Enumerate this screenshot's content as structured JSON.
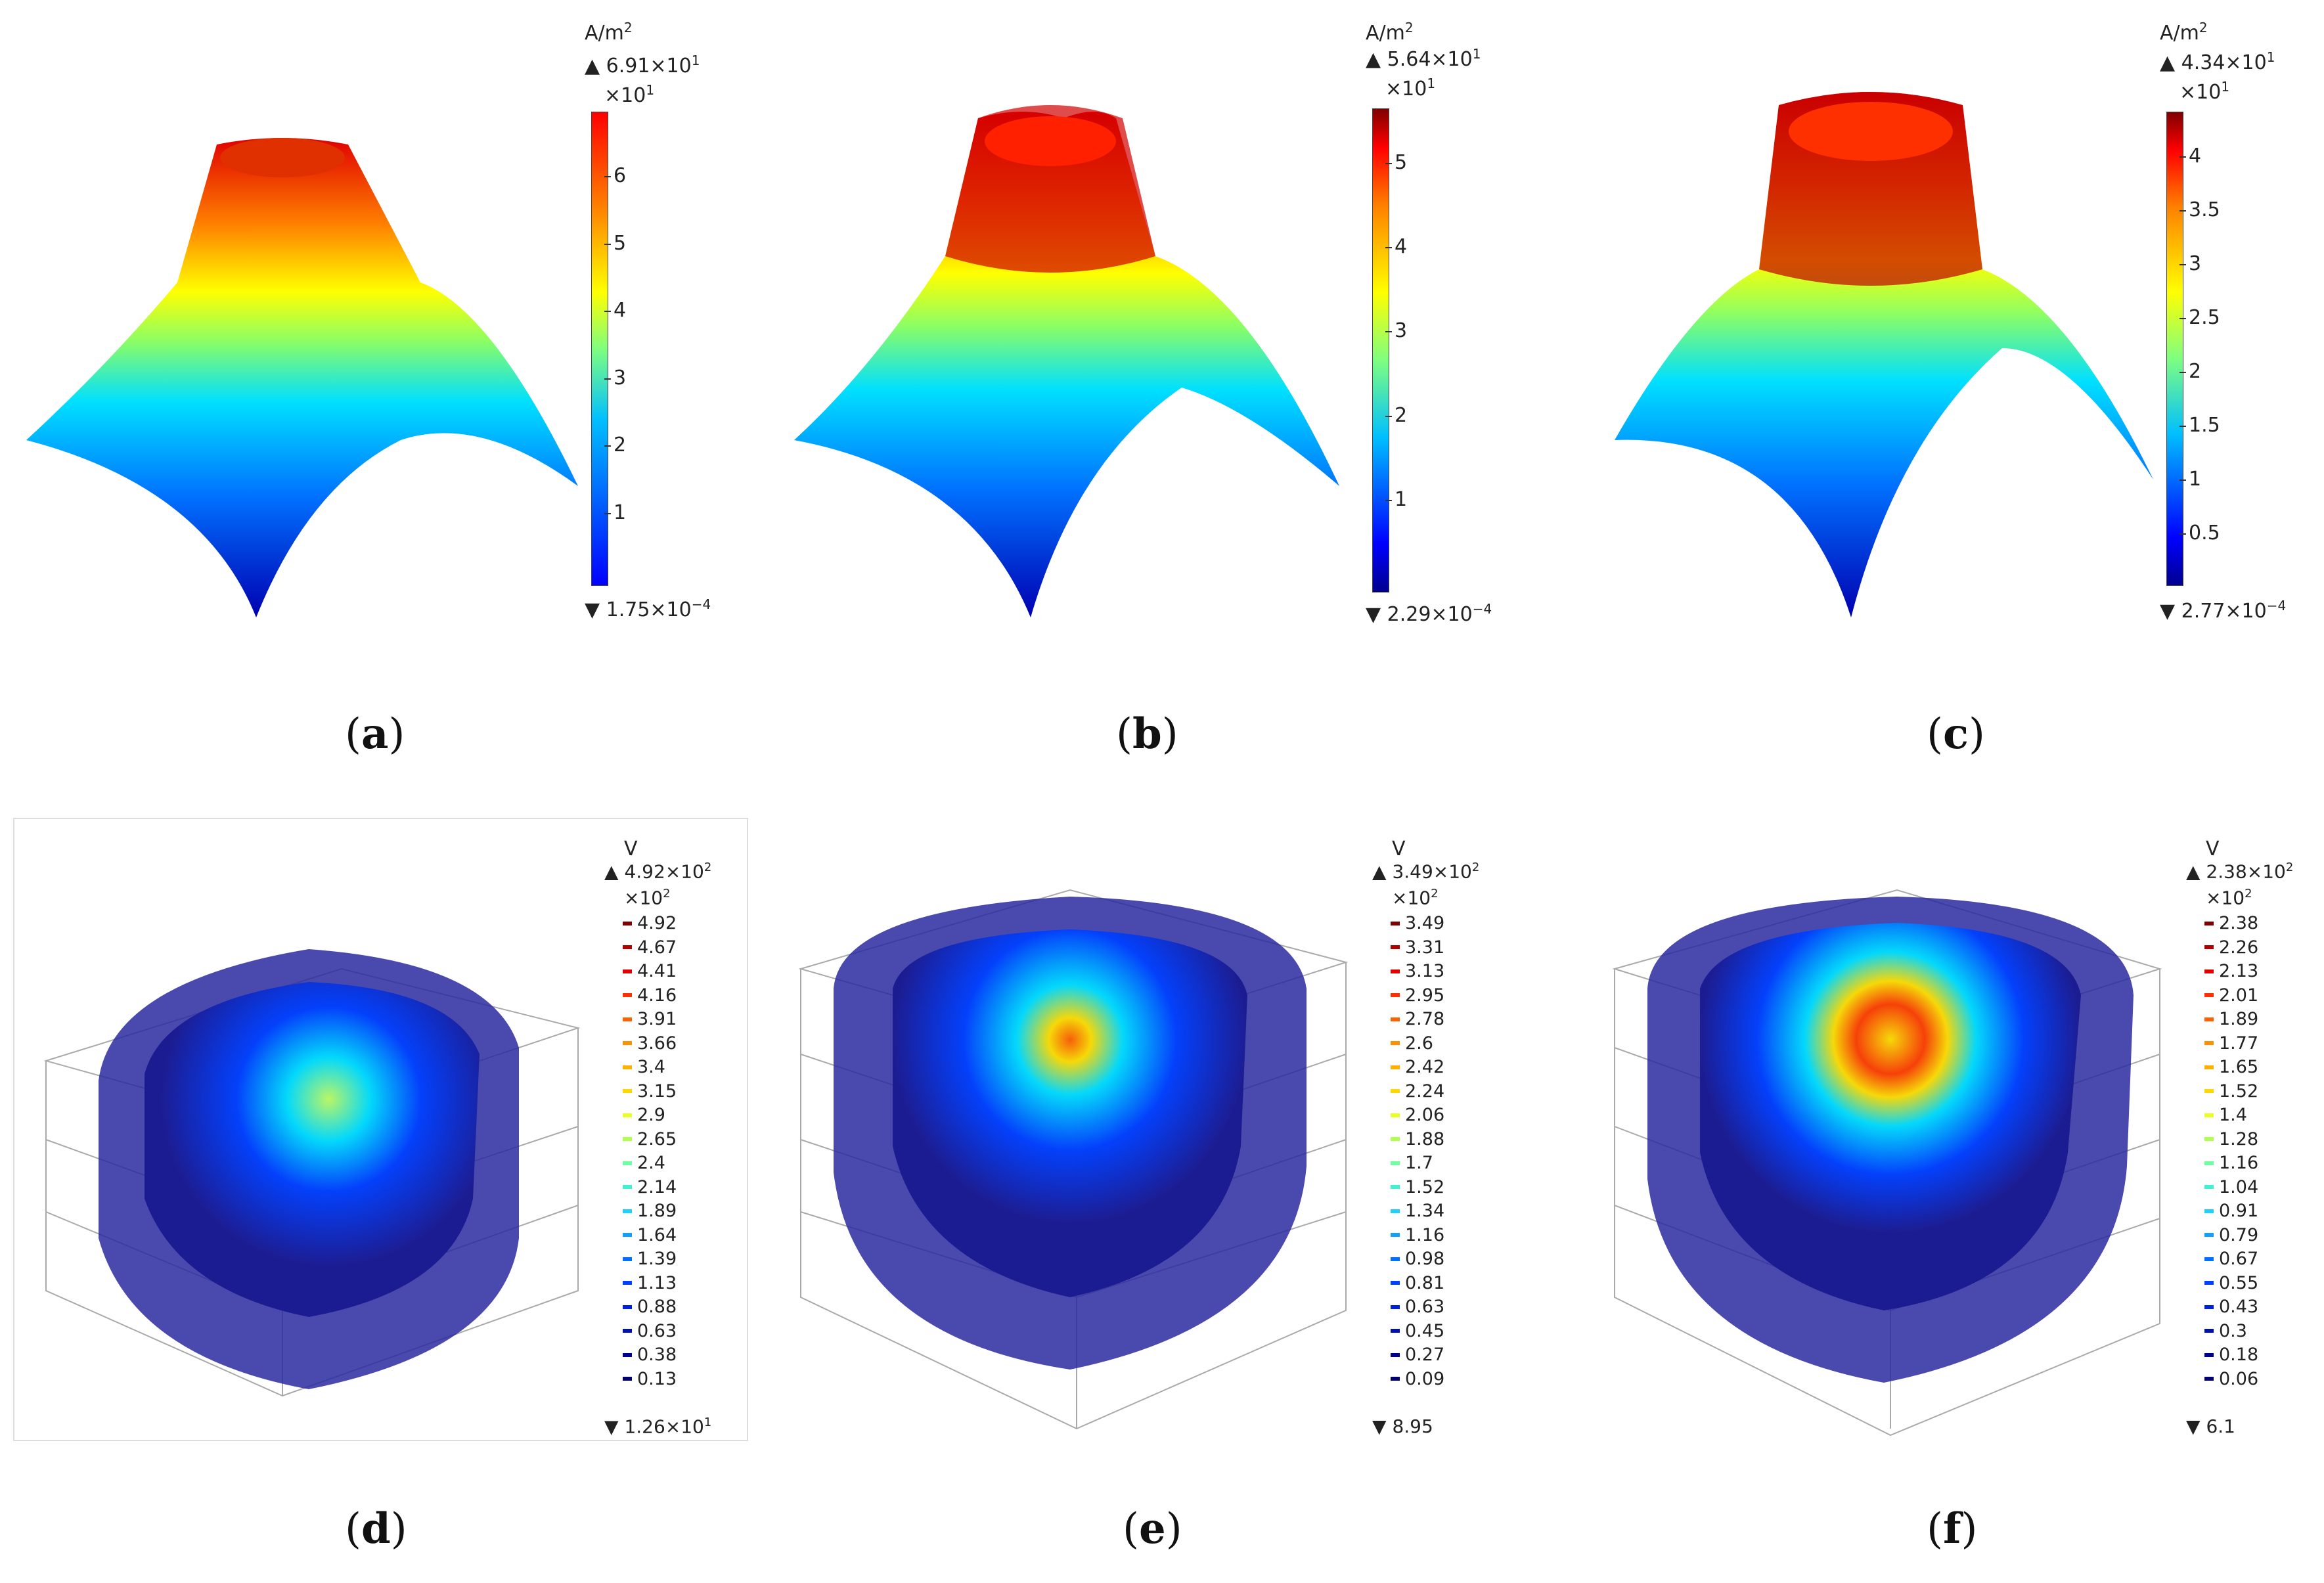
{
  "panels": {
    "a": {
      "caption_letter": "a",
      "unit": "A/m",
      "unit_sup": "2",
      "max": "6.91×10",
      "max_sup": "1",
      "multiplier": "×10",
      "multiplier_sup": "1",
      "min": "1.75×10",
      "min_sup": "−4",
      "ticks": [
        "6",
        "5",
        "4",
        "3",
        "2",
        "1"
      ]
    },
    "b": {
      "caption_letter": "b",
      "unit": "A/m",
      "unit_sup": "2",
      "max": "5.64×10",
      "max_sup": "1",
      "multiplier": "×10",
      "multiplier_sup": "1",
      "min": "2.29×10",
      "min_sup": "−4",
      "ticks": [
        "5",
        "4",
        "3",
        "2",
        "1"
      ]
    },
    "c": {
      "caption_letter": "c",
      "unit": "A/m",
      "unit_sup": "2",
      "max": "4.34×10",
      "max_sup": "1",
      "multiplier": "×10",
      "multiplier_sup": "1",
      "min": "2.77×10",
      "min_sup": "−4",
      "ticks": [
        "4",
        "3.5",
        "3",
        "2.5",
        "2",
        "1.5",
        "1",
        "0.5"
      ]
    },
    "d": {
      "caption_letter": "d",
      "unit": "V",
      "max": "4.92×10",
      "max_sup": "2",
      "multiplier": "×10",
      "multiplier_sup": "2",
      "min": "1.26×10",
      "min_sup": "1",
      "levels": [
        "4.92",
        "4.67",
        "4.41",
        "4.16",
        "3.91",
        "3.66",
        "3.4",
        "3.15",
        "2.9",
        "2.65",
        "2.4",
        "2.14",
        "1.89",
        "1.64",
        "1.39",
        "1.13",
        "0.88",
        "0.63",
        "0.38",
        "0.13"
      ]
    },
    "e": {
      "caption_letter": "e",
      "unit": "V",
      "max": "3.49×10",
      "max_sup": "2",
      "multiplier": "×10",
      "multiplier_sup": "2",
      "min": "8.95",
      "levels": [
        "3.49",
        "3.31",
        "3.13",
        "2.95",
        "2.78",
        "2.6",
        "2.42",
        "2.24",
        "2.06",
        "1.88",
        "1.7",
        "1.52",
        "1.34",
        "1.16",
        "0.98",
        "0.81",
        "0.63",
        "0.45",
        "0.27",
        "0.09"
      ]
    },
    "f": {
      "caption_letter": "f",
      "unit": "V",
      "max": "2.38×10",
      "max_sup": "2",
      "multiplier": "×10",
      "multiplier_sup": "2",
      "min": "6.1",
      "levels": [
        "2.38",
        "2.26",
        "2.13",
        "2.01",
        "1.89",
        "1.77",
        "1.65",
        "1.52",
        "1.4",
        "1.28",
        "1.16",
        "1.04",
        "0.91",
        "0.79",
        "0.67",
        "0.55",
        "0.43",
        "0.3",
        "0.18",
        "0.06"
      ]
    }
  },
  "colors": {
    "jet": [
      "#00008f",
      "#0000ff",
      "#00bfff",
      "#7fff7f",
      "#ffff00",
      "#ff8000",
      "#ff0000",
      "#800000"
    ]
  }
}
